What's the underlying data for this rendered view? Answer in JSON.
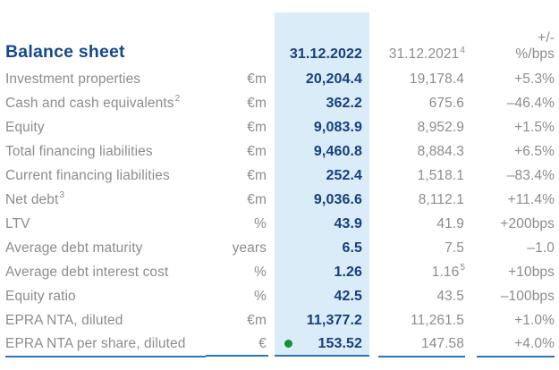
{
  "title": "Balance sheet",
  "columns": {
    "col2022": "31.12.2022",
    "col2021": "31.12.2021",
    "col2021_sup": "4",
    "change_line1": "+/-",
    "change_line2": "%/bps"
  },
  "colors": {
    "navy": "#15498d",
    "num_navy": "#173f7c",
    "gray": "#8c8c8c",
    "highlight_bg": "#daecf8",
    "underline": "#2e73b4",
    "dot_green": "#149233"
  },
  "rows": [
    {
      "label": "Investment properties",
      "sup": "",
      "unit": "€m",
      "v2022": "20,204.4",
      "v2021": "19,178.4",
      "v2021_sup": "",
      "change": "+5.3%",
      "dot": false
    },
    {
      "label": "Cash and cash equivalents",
      "sup": "2",
      "unit": "€m",
      "v2022": "362.2",
      "v2021": "675.6",
      "v2021_sup": "",
      "change": "–46.4%",
      "dot": false
    },
    {
      "label": "Equity",
      "sup": "",
      "unit": "€m",
      "v2022": "9,083.9",
      "v2021": "8,952.9",
      "v2021_sup": "",
      "change": "+1.5%",
      "dot": false
    },
    {
      "label": "Total financing liabilities",
      "sup": "",
      "unit": "€m",
      "v2022": "9,460.8",
      "v2021": "8,884.3",
      "v2021_sup": "",
      "change": "+6.5%",
      "dot": false
    },
    {
      "label": "Current financing liabilities",
      "sup": "",
      "unit": "€m",
      "v2022": "252.4",
      "v2021": "1,518.1",
      "v2021_sup": "",
      "change": "–83.4%",
      "dot": false
    },
    {
      "label": "Net debt",
      "sup": "3",
      "unit": "€m",
      "v2022": "9,036.6",
      "v2021": "8,112.1",
      "v2021_sup": "",
      "change": "+11.4%",
      "dot": false
    },
    {
      "label": "LTV",
      "sup": "",
      "unit": "%",
      "v2022": "43.9",
      "v2021": "41.9",
      "v2021_sup": "",
      "change": "+200bps",
      "dot": false
    },
    {
      "label": "Average debt maturity",
      "sup": "",
      "unit": "years",
      "v2022": "6.5",
      "v2021": "7.5",
      "v2021_sup": "",
      "change": "–1.0",
      "dot": false
    },
    {
      "label": "Average debt interest cost",
      "sup": "",
      "unit": "%",
      "v2022": "1.26",
      "v2021": "1.16",
      "v2021_sup": "5",
      "change": "+10bps",
      "dot": false
    },
    {
      "label": "Equity ratio",
      "sup": "",
      "unit": "%",
      "v2022": "42.5",
      "v2021": "43.5",
      "v2021_sup": "",
      "change": "–100bps",
      "dot": false
    },
    {
      "label": "EPRA NTA, diluted",
      "sup": "",
      "unit": "€m",
      "v2022": "11,377.2",
      "v2021": "11,261.5",
      "v2021_sup": "",
      "change": "+1.0%",
      "dot": false
    },
    {
      "label": "EPRA NTA per share, diluted",
      "sup": "",
      "unit": "€",
      "v2022": "153.52",
      "v2021": "147.58",
      "v2021_sup": "",
      "change": "+4.0%",
      "dot": true
    }
  ]
}
